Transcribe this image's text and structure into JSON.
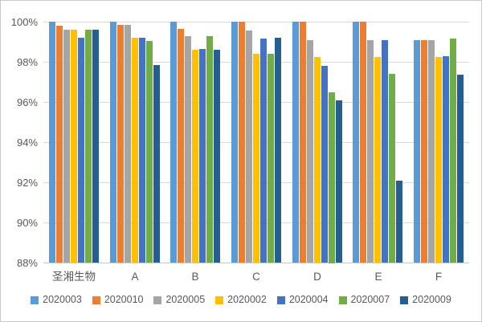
{
  "chart_data": {
    "type": "bar",
    "title": "",
    "xlabel": "",
    "ylabel": "",
    "categories": [
      "圣湘生物",
      "A",
      "B",
      "C",
      "D",
      "E",
      "F"
    ],
    "series": [
      {
        "name": "2020003",
        "color": "#5B9BD5",
        "values": [
          100,
          100,
          100,
          100,
          100,
          100,
          99.1
        ]
      },
      {
        "name": "2020010",
        "color": "#ED7D31",
        "values": [
          99.8,
          99.85,
          99.65,
          100,
          100,
          100,
          99.1
        ]
      },
      {
        "name": "2020005",
        "color": "#A5A5A5",
        "values": [
          99.6,
          99.85,
          99.3,
          99.55,
          99.1,
          99.1,
          99.1
        ]
      },
      {
        "name": "2020002",
        "color": "#FFC000",
        "values": [
          99.6,
          99.2,
          98.6,
          98.4,
          98.25,
          98.25,
          98.25
        ]
      },
      {
        "name": "2020004",
        "color": "#4472C4",
        "values": [
          99.2,
          99.2,
          98.65,
          99.15,
          97.8,
          99.1,
          98.3
        ]
      },
      {
        "name": "2020007",
        "color": "#70AD47",
        "values": [
          99.6,
          99.05,
          99.3,
          98.4,
          96.5,
          97.4,
          99.15
        ]
      },
      {
        "name": "2020009",
        "color": "#255E91",
        "values": [
          99.6,
          97.85,
          98.6,
          99.2,
          96.1,
          92.1,
          97.35
        ]
      }
    ],
    "ylim": [
      88,
      100
    ],
    "ytick_step": 2,
    "ytick_suffix": "%",
    "grid": true,
    "legend_position": "bottom",
    "colors": {
      "gridline": "#d9d9d9",
      "axis_line": "#c6c6c6",
      "tick_text": "#595959",
      "border": "#c9c9c9",
      "background": "#ffffff"
    }
  }
}
